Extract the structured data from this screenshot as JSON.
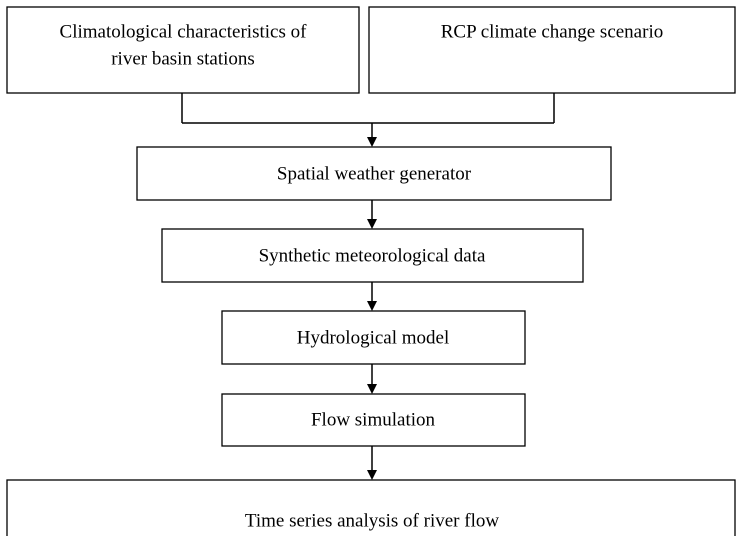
{
  "nodes": [
    {
      "lines": [
        "Climatological characteristics of",
        "river basin stations"
      ]
    },
    {
      "label": "RCP climate change scenario"
    },
    {
      "label": "Spatial weather generator"
    },
    {
      "label": "Synthetic meteorological data"
    },
    {
      "label": "Hydrological model"
    },
    {
      "label": "Flow simulation"
    },
    {
      "label": "Time series analysis of river flow"
    }
  ]
}
